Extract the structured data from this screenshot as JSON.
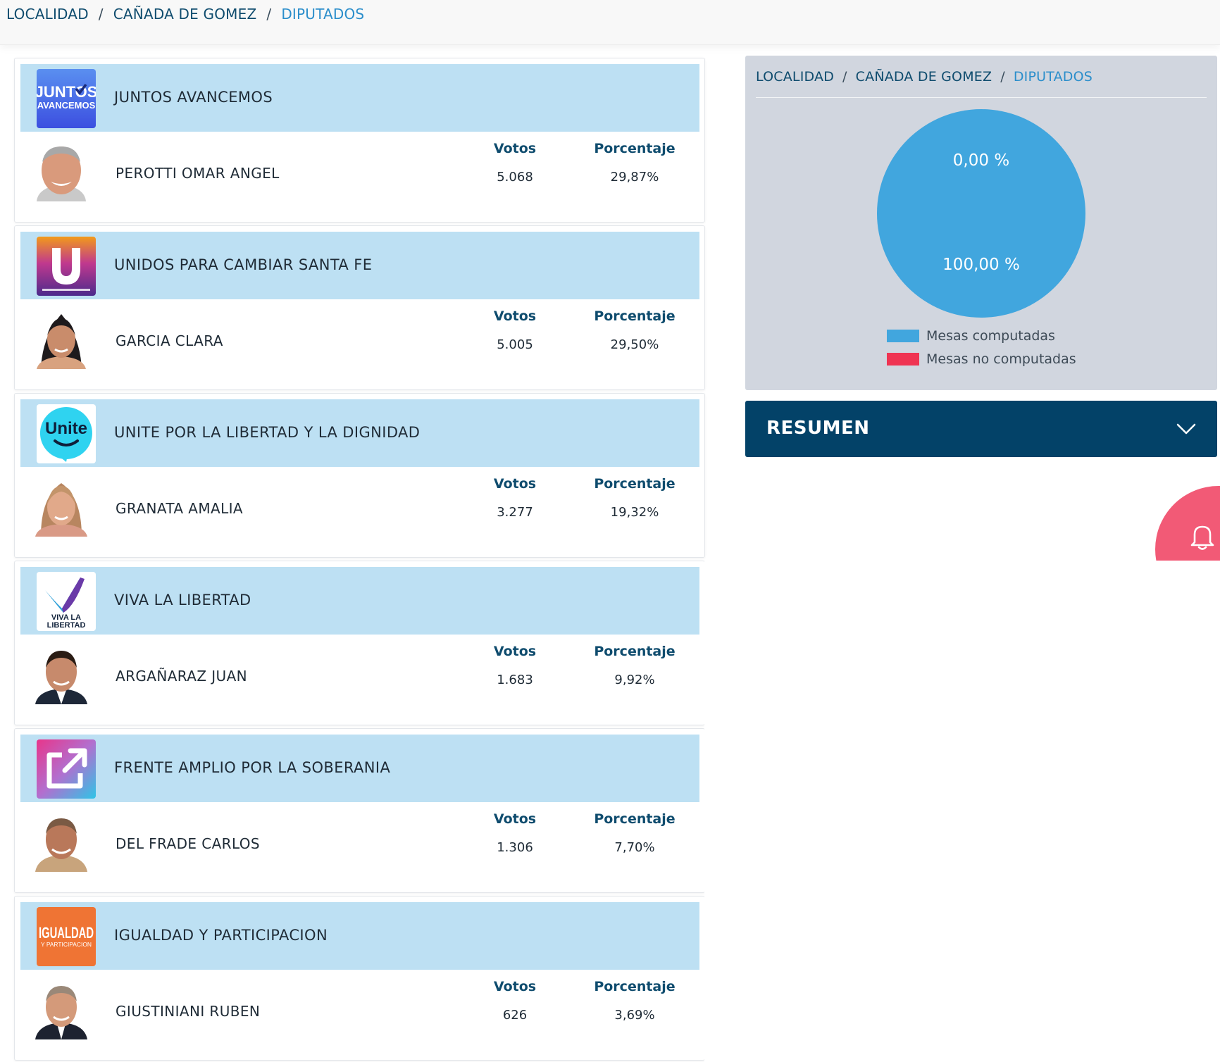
{
  "breadcrumb": {
    "items": [
      "LOCALIDAD",
      "CAÑADA DE GOMEZ",
      "DIPUTADOS"
    ],
    "separator": "/"
  },
  "columns": {
    "votes_label": "Votos",
    "percent_label": "Porcentaje"
  },
  "results": [
    {
      "party": "JUNTOS AVANCEMOS",
      "logo_icon": "juntos-avancemos-logo",
      "candidate": "PEROTTI OMAR ANGEL",
      "votes": "5.068",
      "percent": "29,87%"
    },
    {
      "party": "UNIDOS PARA CAMBIAR SANTA FE",
      "logo_icon": "unidos-logo",
      "candidate": "GARCIA CLARA",
      "votes": "5.005",
      "percent": "29,50%"
    },
    {
      "party": "UNITE POR LA LIBERTAD Y LA DIGNIDAD",
      "logo_icon": "unite-logo",
      "candidate": "GRANATA AMALIA",
      "votes": "3.277",
      "percent": "19,32%"
    },
    {
      "party": "VIVA LA LIBERTAD",
      "logo_icon": "viva-la-libertad-logo",
      "candidate": "ARGAÑARAZ JUAN",
      "votes": "1.683",
      "percent": "9,92%"
    },
    {
      "party": "FRENTE AMPLIO POR LA SOBERANIA",
      "logo_icon": "frente-amplio-logo",
      "candidate": "DEL FRADE CARLOS",
      "votes": "1.306",
      "percent": "7,70%"
    },
    {
      "party": "IGUALDAD Y PARTICIPACION",
      "logo_icon": "igualdad-logo",
      "candidate": "GIUSTINIANI RUBEN",
      "votes": "626",
      "percent": "3,69%"
    }
  ],
  "mesas": {
    "breadcrumb": [
      "LOCALIDAD",
      "CAÑADA DE GOMEZ",
      "DIPUTADOS"
    ],
    "pie_labels": {
      "no_computadas": "0,00 %",
      "computadas": "100,00 %"
    },
    "computadas_fraction": 1.0,
    "legend": [
      {
        "label": "Mesas computadas",
        "color": "#41a6de"
      },
      {
        "label": "Mesas no computadas",
        "color": "#ef3452"
      }
    ]
  },
  "resumen": {
    "title": "RESUMEN",
    "icon": "chevron-down-icon"
  },
  "notifications": {
    "icon": "bell-icon",
    "color": "#f25a76"
  },
  "colors": {
    "header_bg": "#bde0f3",
    "link": "#0f4c6e",
    "active_crumb": "#2b8ecb",
    "resumen_bg": "#034268"
  }
}
